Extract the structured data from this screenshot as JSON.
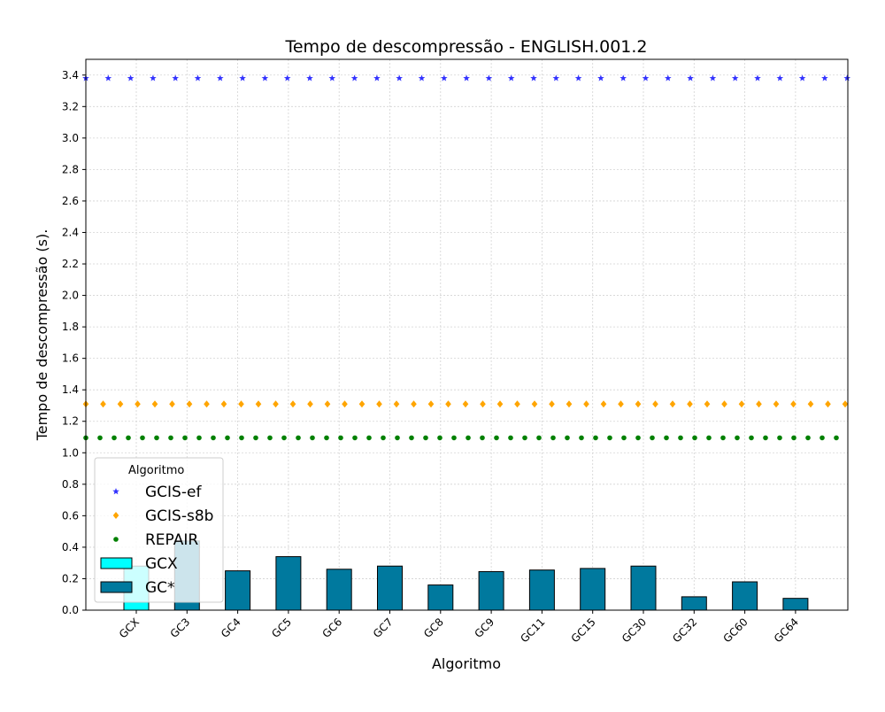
{
  "chart_data": {
    "type": "bar",
    "title": "Tempo de descompressão -  ENGLISH.001.2",
    "xlabel": "Algoritmo",
    "ylabel": "Tempo de descompressão (s).",
    "ylim": [
      0,
      3.5
    ],
    "yticks": [
      0.0,
      0.2,
      0.4,
      0.6,
      0.8,
      1.0,
      1.2,
      1.4,
      1.6,
      1.8,
      2.0,
      2.2,
      2.4,
      2.6,
      2.8,
      3.0,
      3.2,
      3.4
    ],
    "ytick_labels": [
      "0.0",
      "0.2",
      "0.4",
      "0.6",
      "0.8",
      "1.0",
      "1.2",
      "1.4",
      "1.6",
      "1.8",
      "2.0",
      "2.2",
      "2.4",
      "2.6",
      "2.8",
      "3.0",
      "3.2",
      "3.4"
    ],
    "grid": true,
    "categories": [
      "GCX",
      "GC3",
      "GC4",
      "GC5",
      "GC6",
      "GC7",
      "GC8",
      "GC9",
      "GC11",
      "GC15",
      "GC30",
      "GC32",
      "GC60",
      "GC64"
    ],
    "bars": [
      {
        "category": "GCX",
        "value": 0.28,
        "series": "GCX",
        "color": "#00ffff"
      },
      {
        "category": "GC3",
        "value": 0.44,
        "series": "GC*",
        "color": "#00799e"
      },
      {
        "category": "GC4",
        "value": 0.25,
        "series": "GC*",
        "color": "#00799e"
      },
      {
        "category": "GC5",
        "value": 0.34,
        "series": "GC*",
        "color": "#00799e"
      },
      {
        "category": "GC6",
        "value": 0.26,
        "series": "GC*",
        "color": "#00799e"
      },
      {
        "category": "GC7",
        "value": 0.28,
        "series": "GC*",
        "color": "#00799e"
      },
      {
        "category": "GC8",
        "value": 0.16,
        "series": "GC*",
        "color": "#00799e"
      },
      {
        "category": "GC9",
        "value": 0.245,
        "series": "GC*",
        "color": "#00799e"
      },
      {
        "category": "GC11",
        "value": 0.255,
        "series": "GC*",
        "color": "#00799e"
      },
      {
        "category": "GC15",
        "value": 0.265,
        "series": "GC*",
        "color": "#00799e"
      },
      {
        "category": "GC30",
        "value": 0.28,
        "series": "GC*",
        "color": "#00799e"
      },
      {
        "category": "GC32",
        "value": 0.085,
        "series": "GC*",
        "color": "#00799e"
      },
      {
        "category": "GC60",
        "value": 0.18,
        "series": "GC*",
        "color": "#00799e"
      },
      {
        "category": "GC64",
        "value": 0.075,
        "series": "GC*",
        "color": "#00799e"
      }
    ],
    "reference_lines": [
      {
        "name": "GCIS-ef",
        "value": 3.38,
        "marker": "star",
        "color": "#3333ff"
      },
      {
        "name": "GCIS-s8b",
        "value": 1.31,
        "marker": "diamond",
        "color": "#ffa500"
      },
      {
        "name": "REPAIR",
        "value": 1.095,
        "marker": "circle",
        "color": "#008000"
      }
    ],
    "legend": {
      "title": "Algoritmo",
      "position": "lower-left",
      "entries": [
        {
          "label": "GCIS-ef",
          "kind": "marker",
          "marker": "star",
          "color": "#3333ff"
        },
        {
          "label": "GCIS-s8b",
          "kind": "marker",
          "marker": "diamond",
          "color": "#ffa500"
        },
        {
          "label": "REPAIR",
          "kind": "marker",
          "marker": "circle",
          "color": "#008000"
        },
        {
          "label": "GCX",
          "kind": "patch",
          "color": "#00ffff"
        },
        {
          "label": "GC*",
          "kind": "patch",
          "color": "#00799e"
        }
      ]
    }
  }
}
